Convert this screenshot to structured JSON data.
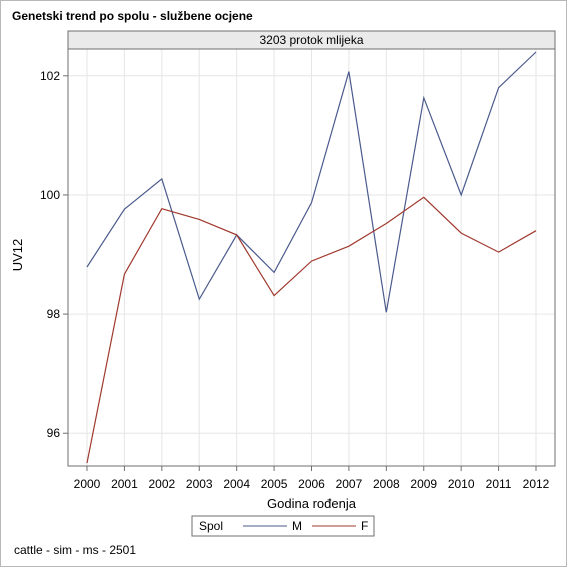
{
  "title": "Genetski trend po spolu - službene ocjene",
  "footnote": "cattle - sim - ms - 2501",
  "chart_data": {
    "type": "line",
    "panel_label": "3203 protok mlijeka",
    "xlabel": "Godina rođenja",
    "ylabel": "UV12",
    "x": [
      2000,
      2001,
      2002,
      2003,
      2004,
      2005,
      2006,
      2007,
      2008,
      2009,
      2010,
      2011,
      2012
    ],
    "ylim": [
      95.45,
      102.45
    ],
    "yticks": [
      96,
      98,
      100,
      102
    ],
    "grid": true,
    "legend": {
      "title": "Spol",
      "placement": "bottom-center"
    },
    "series": [
      {
        "name": "M",
        "color": "#4a5a8c",
        "values": [
          98.79,
          99.76,
          100.27,
          98.25,
          99.33,
          98.7,
          99.87,
          102.07,
          98.03,
          101.63,
          100.0,
          101.8,
          102.4
        ]
      },
      {
        "name": "F",
        "color": "#a0392e",
        "values": [
          95.5,
          98.67,
          99.77,
          99.59,
          99.33,
          98.31,
          98.89,
          99.14,
          99.52,
          99.96,
          99.36,
          99.04,
          99.4
        ]
      }
    ]
  }
}
